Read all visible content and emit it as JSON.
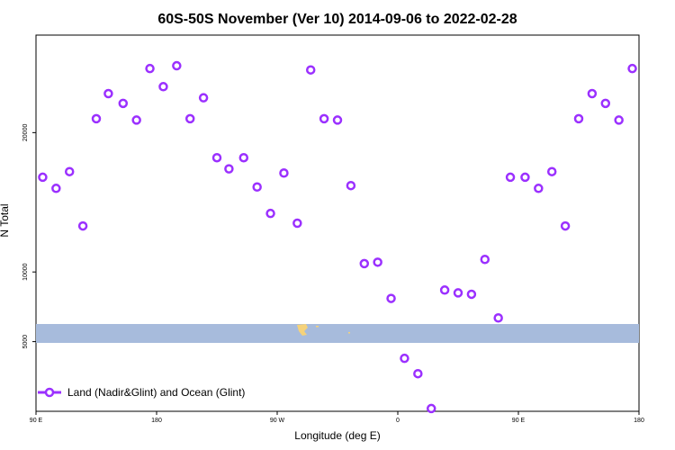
{
  "chart_data": {
    "type": "scatter",
    "title": "60S-50S November (Ver 10)   2014-09-06 to 2022-02-28",
    "xlabel": "Longitude (deg E)",
    "ylabel": "N Total",
    "x_ticks": [
      {
        "value": 90,
        "label": "90 E"
      },
      {
        "value": 180,
        "label": "180"
      },
      {
        "value": 270,
        "label": "90 W"
      },
      {
        "value": 360,
        "label": "0"
      },
      {
        "value": 450,
        "label": "90 E"
      },
      {
        "value": 540,
        "label": "180"
      }
    ],
    "y_ticks": [
      5000,
      10000,
      20000
    ],
    "xlim": [
      90,
      540
    ],
    "ylim": [
      0,
      27000
    ],
    "grid": false,
    "legend_position": "bottom-left",
    "marker_color": "#9b30ff",
    "band_color": "#a7bbdc",
    "land_color": "#f5d27a",
    "series": [
      {
        "name": "Land (Nadir&Glint) and Ocean (Glint)",
        "x": [
          95,
          105,
          115,
          125,
          135,
          144,
          155,
          165,
          175,
          185,
          195,
          205,
          215,
          225,
          234,
          245,
          255,
          265,
          275,
          285,
          295,
          305,
          315,
          325,
          335,
          345,
          355,
          365,
          375,
          385,
          395,
          405,
          415,
          425,
          435,
          444,
          455,
          465,
          475,
          485,
          495,
          505,
          515,
          525,
          535
        ],
        "y": [
          16800,
          16000,
          17200,
          13300,
          21000,
          22800,
          22100,
          20900,
          24600,
          23300,
          24800,
          21000,
          22500,
          18200,
          17400,
          18200,
          16100,
          14200,
          17100,
          13500,
          24500,
          21000,
          20900,
          16200,
          10600,
          10700,
          8100,
          3800,
          2700,
          200,
          8700,
          8500,
          8400,
          10900,
          6700,
          16800,
          16800,
          16000,
          17200,
          13300,
          21000,
          22800,
          22100,
          20900,
          24600
        ]
      }
    ]
  }
}
